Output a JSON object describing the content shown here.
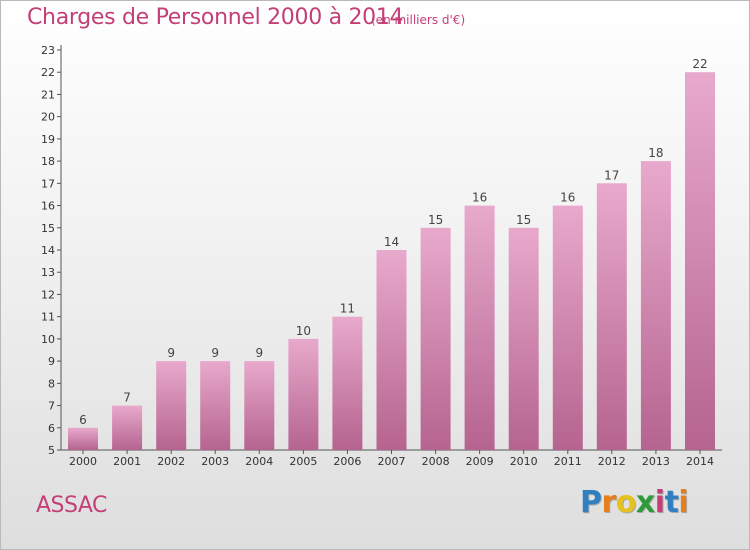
{
  "title": "Charges de Personnel 2000 à 2014",
  "subtitle": "(en milliers d'€)",
  "city": "ASSAC",
  "logo": {
    "letters": [
      "P",
      "r",
      "o",
      "x",
      "i",
      "t",
      "i"
    ],
    "colors": [
      "#2f7fc1",
      "#e57e1c",
      "#e5c21c",
      "#2f9a3a",
      "#c33f76",
      "#2f7fc1",
      "#e57e1c"
    ]
  },
  "colors": {
    "title": "#c33f76",
    "bar_light": "#e8a9cc",
    "bar_dark": "#b5648f"
  },
  "chart_data": {
    "type": "bar",
    "categories": [
      "2000",
      "2001",
      "2002",
      "2003",
      "2004",
      "2005",
      "2006",
      "2007",
      "2008",
      "2009",
      "2010",
      "2011",
      "2012",
      "2013",
      "2014"
    ],
    "values": [
      6,
      7,
      9,
      9,
      9,
      10,
      11,
      14,
      15,
      16,
      15,
      16,
      17,
      18,
      22
    ],
    "ylim": [
      5,
      23
    ],
    "yticks": [
      5,
      6,
      7,
      8,
      9,
      10,
      11,
      12,
      13,
      14,
      15,
      16,
      17,
      18,
      19,
      20,
      21,
      22,
      23
    ],
    "xlabel": "",
    "ylabel": "",
    "grid": false,
    "data_labels": true
  }
}
